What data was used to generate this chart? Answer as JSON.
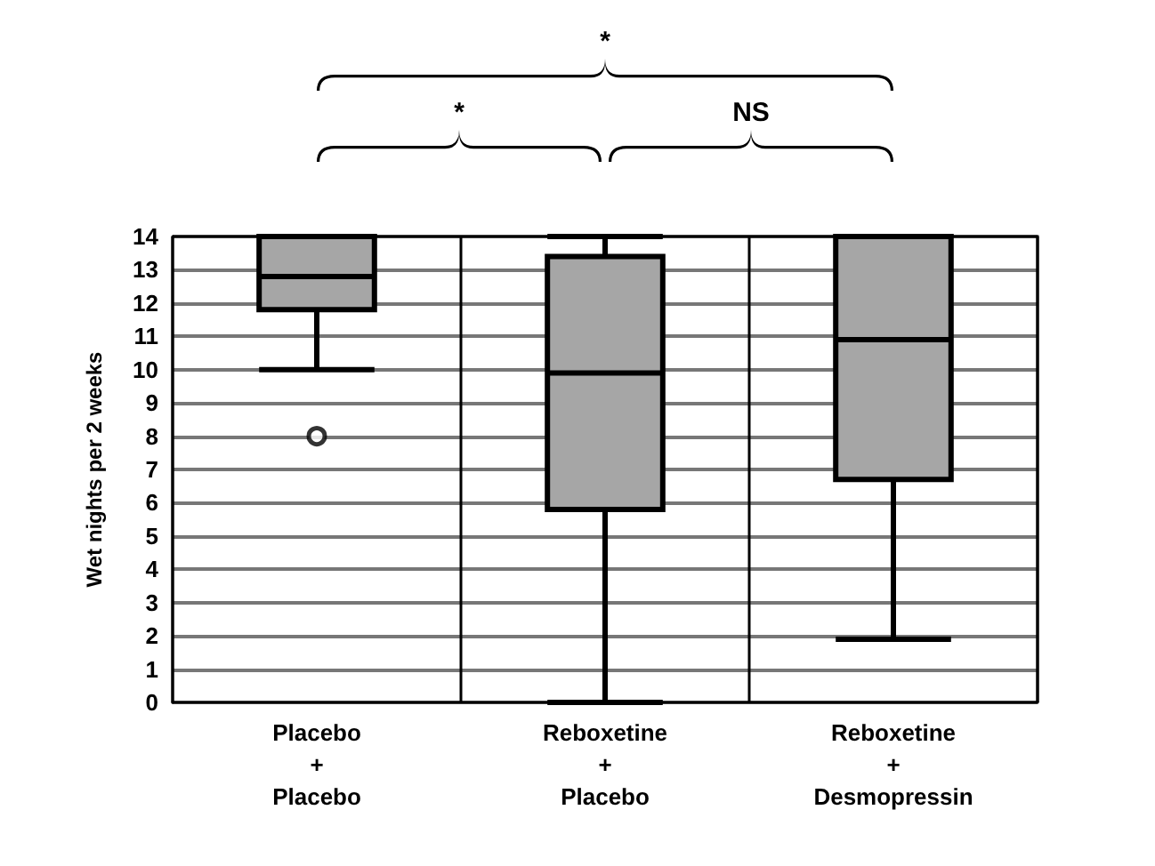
{
  "chart_data": {
    "type": "box",
    "ylabel": "Wet nights per 2 weeks",
    "categories": [
      "Placebo\n+\nPlacebo",
      "Reboxetine\n+\nPlacebo",
      "Reboxetine\n+\nDesmopressin"
    ],
    "boxes": [
      {
        "low": 10,
        "q1": 11.8,
        "median": 12.8,
        "q3": 14,
        "high": 14,
        "outliers": [
          8
        ]
      },
      {
        "low": 0,
        "q1": 5.8,
        "median": 9.9,
        "q3": 13.4,
        "high": 14
      },
      {
        "low": 1.9,
        "q1": 6.7,
        "median": 10.9,
        "q3": 14,
        "high": 14
      }
    ],
    "color": "#a6a6a6",
    "ylim": [
      0,
      14
    ],
    "yticks": [
      0,
      1,
      2,
      3,
      4,
      5,
      6,
      7,
      8,
      9,
      10,
      11,
      12,
      13,
      14
    ],
    "grid": true,
    "annotations": [
      "*",
      "*",
      "NS"
    ]
  }
}
